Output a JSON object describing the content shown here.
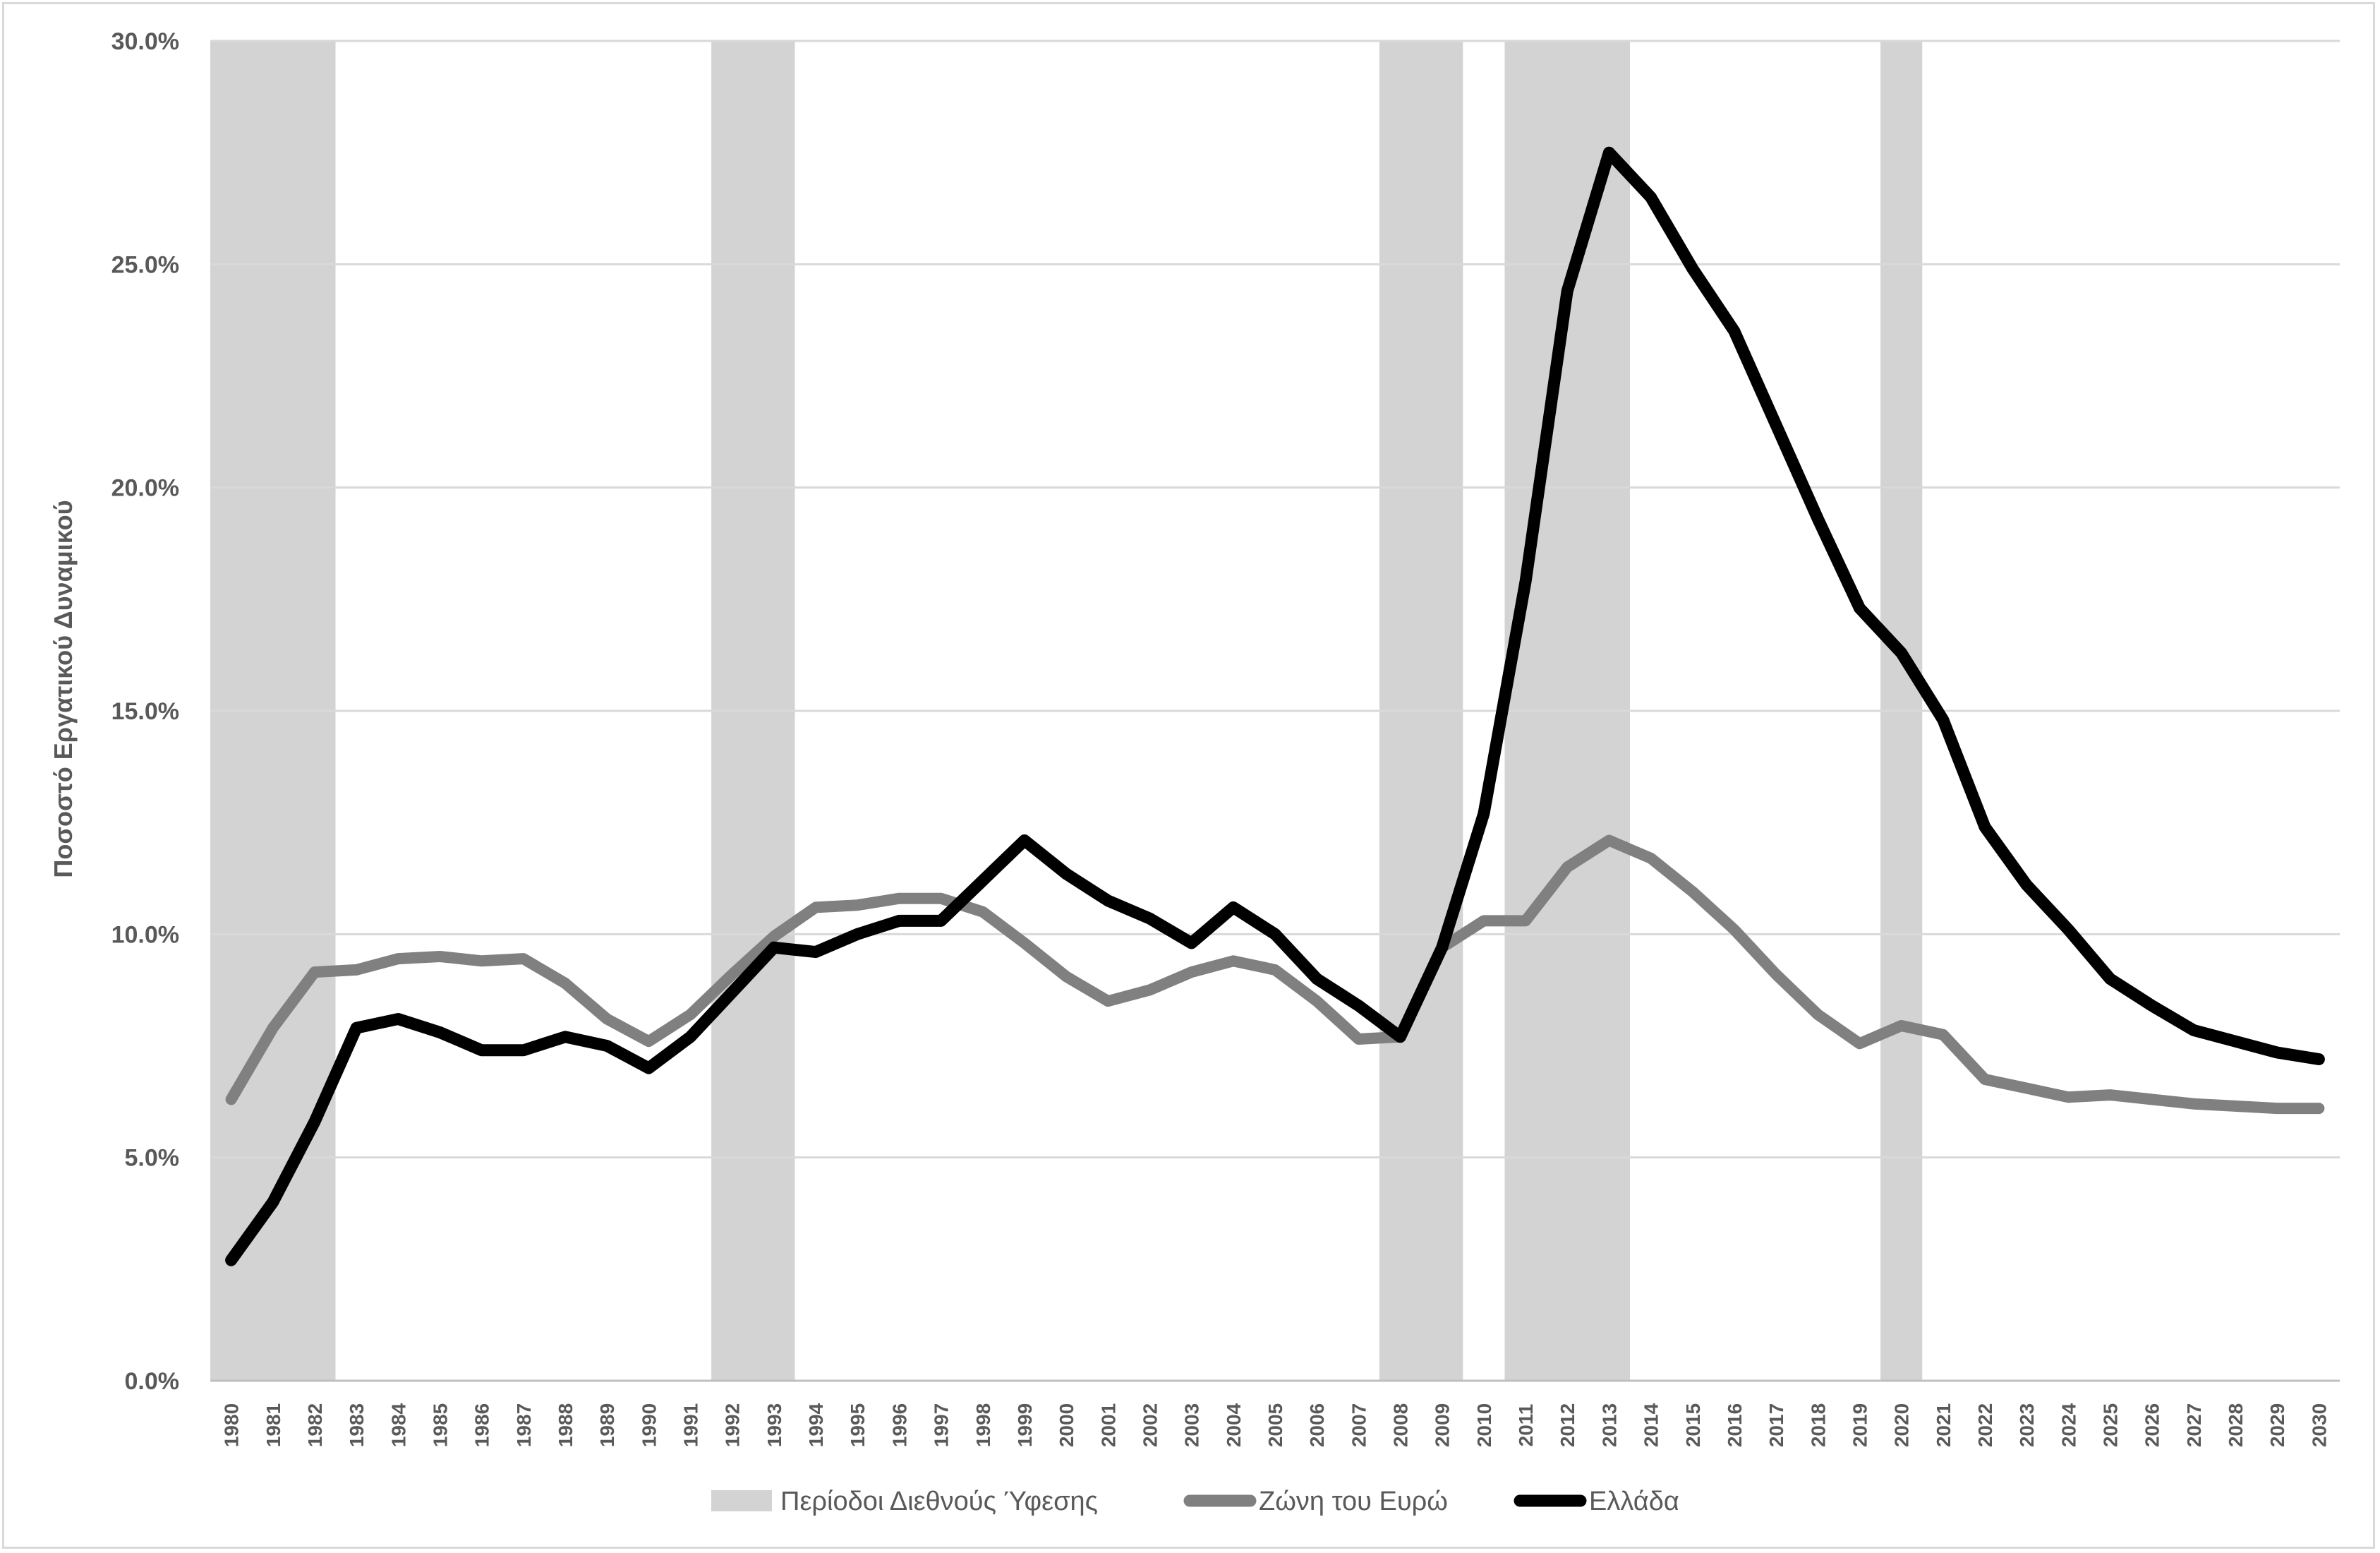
{
  "chart_data": {
    "type": "line",
    "title": "",
    "xlabel": "",
    "ylabel": "Ποσοστό Εργατικού Δυναμικού",
    "ylim": [
      0,
      30
    ],
    "y_tick_labels": [
      "0.0%",
      "5.0%",
      "10.0%",
      "15.0%",
      "20.0%",
      "25.0%",
      "30.0%"
    ],
    "y_ticks": [
      0,
      5,
      10,
      15,
      20,
      25,
      30
    ],
    "grid": "horizontal",
    "legend_position": "bottom",
    "x": [
      "1980",
      "1981",
      "1982",
      "1983",
      "1984",
      "1985",
      "1986",
      "1987",
      "1988",
      "1989",
      "1990",
      "1991",
      "1992",
      "1993",
      "1994",
      "1995",
      "1996",
      "1997",
      "1998",
      "1999",
      "2000",
      "2001",
      "2002",
      "2003",
      "2004",
      "2005",
      "2006",
      "2007",
      "2008",
      "2009",
      "2010",
      "2011",
      "2012",
      "2013",
      "2014",
      "2015",
      "2016",
      "2017",
      "2018",
      "2019",
      "2020",
      "2021",
      "2022",
      "2023",
      "2024",
      "2025",
      "2026",
      "2027",
      "2028",
      "2029",
      "2030"
    ],
    "recession_periods": {
      "name": "Περίοδοι Διεθνούς Ύφεσης",
      "color": "#d3d3d3",
      "ranges": [
        [
          "1980",
          "1982"
        ],
        [
          "1992",
          "1993"
        ],
        [
          "2008",
          "2009"
        ],
        [
          "2011",
          "2013"
        ],
        [
          "2020",
          "2020"
        ]
      ]
    },
    "series": [
      {
        "name": "Ζώνη του Ευρώ",
        "color": "#808080",
        "values": [
          6.3,
          7.9,
          9.15,
          9.2,
          9.45,
          9.5,
          9.4,
          9.45,
          8.9,
          8.1,
          7.6,
          8.2,
          9.1,
          9.95,
          10.6,
          10.65,
          10.8,
          10.8,
          10.5,
          9.8,
          9.05,
          8.5,
          8.75,
          9.15,
          9.4,
          9.2,
          8.5,
          7.65,
          7.7,
          9.7,
          10.3,
          10.3,
          11.5,
          12.1,
          11.7,
          10.95,
          10.1,
          9.1,
          8.2,
          7.55,
          7.95,
          7.75,
          6.75,
          6.55,
          6.35,
          6.4,
          6.3,
          6.2,
          6.15,
          6.1,
          6.1
        ]
      },
      {
        "name": "Ελλάδα",
        "color": "#000000",
        "values": [
          2.7,
          4.0,
          5.8,
          7.9,
          8.1,
          7.8,
          7.4,
          7.4,
          7.7,
          7.5,
          7.0,
          7.7,
          8.7,
          9.7,
          9.6,
          10.0,
          10.3,
          10.3,
          11.2,
          12.1,
          11.35,
          10.75,
          10.35,
          9.8,
          10.6,
          10.0,
          9.0,
          8.4,
          7.7,
          9.7,
          12.7,
          17.9,
          24.4,
          27.5,
          26.5,
          24.9,
          23.5,
          21.4,
          19.3,
          17.3,
          16.3,
          14.8,
          12.4,
          11.1,
          10.1,
          9.0,
          8.4,
          7.85,
          7.6,
          7.35,
          7.2
        ]
      }
    ]
  }
}
